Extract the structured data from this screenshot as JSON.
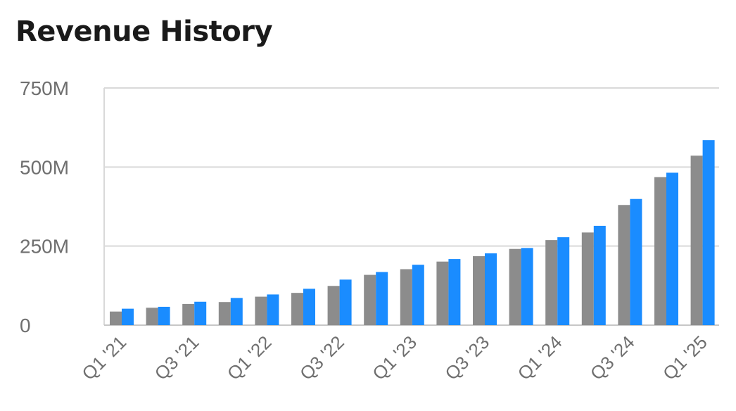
{
  "chart_data": {
    "type": "bar",
    "title": "Revenue History",
    "xlabel": "",
    "ylabel": "",
    "ylim": [
      0,
      750
    ],
    "y_ticks": [
      0,
      250,
      500,
      750
    ],
    "y_tick_labels": [
      "0",
      "250M",
      "500M",
      "750M"
    ],
    "grid": true,
    "legend": "none",
    "categories": [
      "Q1 '21",
      "Q2 '21",
      "Q3 '21",
      "Q4 '21",
      "Q1 '22",
      "Q2 '22",
      "Q3 '22",
      "Q4 '22",
      "Q1 '23",
      "Q2 '23",
      "Q3 '23",
      "Q4 '23",
      "Q1 '24",
      "Q2 '24",
      "Q3 '24",
      "Q4 '24",
      "Q1 '25"
    ],
    "x_tick_labels": [
      "Q1 '21",
      "",
      "Q3 '21",
      "",
      "Q1 '22",
      "",
      "Q3 '22",
      "",
      "Q1 '23",
      "",
      "Q3 '23",
      "",
      "Q1 '24",
      "",
      "Q3 '24",
      "",
      "Q1 '25"
    ],
    "series": [
      {
        "color": "#8c8c8c",
        "values": [
          43,
          55,
          67,
          73,
          90,
          102,
          124,
          159,
          177,
          201,
          218,
          241,
          269,
          293,
          380,
          468,
          536
        ]
      },
      {
        "color": "#1a8cff",
        "values": [
          52,
          58,
          74,
          86,
          97,
          115,
          144,
          168,
          191,
          209,
          227,
          244,
          278,
          314,
          399,
          482,
          585
        ]
      }
    ]
  }
}
